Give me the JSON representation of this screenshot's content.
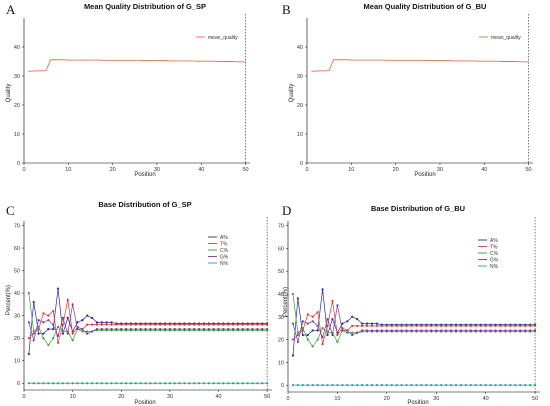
{
  "chart_data": [
    {
      "panel": "A",
      "type": "line",
      "title": "Mean Quality Distribution of G_SP",
      "xlabel": "Position",
      "ylabel": "Quality",
      "xlim": [
        0,
        51
      ],
      "ylim": [
        0,
        50
      ],
      "xticks": [
        0,
        10,
        20,
        30,
        40,
        50
      ],
      "yticks": [
        0,
        10,
        20,
        30,
        40
      ],
      "grid": false,
      "legend_position": "top-right",
      "vline_x": 50,
      "x": [
        1,
        2,
        3,
        4,
        5,
        6,
        7,
        8,
        9,
        10,
        11,
        12,
        13,
        14,
        15,
        16,
        17,
        18,
        19,
        20,
        21,
        22,
        23,
        24,
        25,
        26,
        27,
        28,
        29,
        30,
        31,
        32,
        33,
        34,
        35,
        36,
        37,
        38,
        39,
        40,
        41,
        42,
        43,
        44,
        45,
        46,
        47,
        48,
        49,
        50
      ],
      "series": [
        {
          "name": "mean_quality",
          "color": "#e8704a",
          "values": [
            31.6,
            31.7,
            31.8,
            31.8,
            31.9,
            35.6,
            35.6,
            35.6,
            35.6,
            35.5,
            35.5,
            35.5,
            35.5,
            35.5,
            35.5,
            35.5,
            35.5,
            35.4,
            35.4,
            35.4,
            35.4,
            35.4,
            35.4,
            35.4,
            35.4,
            35.4,
            35.3,
            35.3,
            35.3,
            35.3,
            35.3,
            35.3,
            35.2,
            35.2,
            35.2,
            35.2,
            35.2,
            35.2,
            35.1,
            35.1,
            35.1,
            35.1,
            35.1,
            35.0,
            35.0,
            35.0,
            35.0,
            34.9,
            34.9,
            34.8
          ]
        }
      ]
    },
    {
      "panel": "B",
      "type": "line",
      "title": "Mean Quality Distribution of G_BU",
      "xlabel": "Position",
      "ylabel": "Quality",
      "xlim": [
        0,
        51
      ],
      "ylim": [
        0,
        50
      ],
      "xticks": [
        0,
        10,
        20,
        30,
        40,
        50
      ],
      "yticks": [
        0,
        10,
        20,
        30,
        40
      ],
      "grid": false,
      "legend_position": "top-right",
      "vline_x": 50,
      "x": [
        1,
        2,
        3,
        4,
        5,
        6,
        7,
        8,
        9,
        10,
        11,
        12,
        13,
        14,
        15,
        16,
        17,
        18,
        19,
        20,
        21,
        22,
        23,
        24,
        25,
        26,
        27,
        28,
        29,
        30,
        31,
        32,
        33,
        34,
        35,
        36,
        37,
        38,
        39,
        40,
        41,
        42,
        43,
        44,
        45,
        46,
        47,
        48,
        49,
        50
      ],
      "series": [
        {
          "name": "mean_quality",
          "color": "#e8704a",
          "values": [
            31.6,
            31.7,
            31.8,
            31.8,
            31.9,
            35.6,
            35.6,
            35.6,
            35.6,
            35.5,
            35.5,
            35.5,
            35.5,
            35.5,
            35.5,
            35.5,
            35.5,
            35.4,
            35.4,
            35.4,
            35.4,
            35.4,
            35.4,
            35.4,
            35.4,
            35.4,
            35.3,
            35.3,
            35.3,
            35.3,
            35.3,
            35.3,
            35.2,
            35.2,
            35.2,
            35.2,
            35.2,
            35.2,
            35.1,
            35.1,
            35.1,
            35.1,
            35.1,
            35.0,
            35.0,
            35.0,
            35.0,
            34.9,
            34.9,
            34.8
          ]
        }
      ]
    },
    {
      "panel": "C",
      "type": "line",
      "title": "Base Distribution of G_SP",
      "xlabel": "Position",
      "ylabel": "Percent(%)",
      "xlim": [
        0,
        51
      ],
      "ylim": [
        -3,
        72
      ],
      "xticks": [
        0,
        10,
        20,
        30,
        40,
        50
      ],
      "yticks": [
        0,
        10,
        20,
        30,
        40,
        50,
        60,
        70
      ],
      "grid": false,
      "legend_position": "right",
      "markers": true,
      "vline_x": 50,
      "x": [
        1,
        2,
        3,
        4,
        5,
        6,
        7,
        8,
        9,
        10,
        11,
        12,
        13,
        14,
        15,
        16,
        17,
        18,
        19,
        20,
        21,
        22,
        23,
        24,
        25,
        26,
        27,
        28,
        29,
        30,
        31,
        32,
        33,
        34,
        35,
        36,
        37,
        38,
        39,
        40,
        41,
        42,
        43,
        44,
        45,
        46,
        47,
        48,
        49,
        50
      ],
      "series": [
        {
          "name": "A%",
          "color": "#2c2c8c",
          "values": [
            13,
            36,
            22,
            22,
            24,
            24,
            42,
            22,
            29,
            23,
            27,
            28,
            30,
            29,
            27,
            27,
            27,
            27,
            26.5,
            26.5,
            26.5,
            26.5,
            26.5,
            26.5,
            26.5,
            26.5,
            26.5,
            26.5,
            26.5,
            26.5,
            26.5,
            26.5,
            26.5,
            26.5,
            26.5,
            26.5,
            26.5,
            26.5,
            26.5,
            26.5,
            26.5,
            26.5,
            26.5,
            26.5,
            26.5,
            26.5,
            26.5,
            26.5,
            26.5,
            26.5
          ]
        },
        {
          "name": "T%",
          "color": "#d83a3a",
          "values": [
            20,
            22,
            24,
            31,
            30,
            32,
            18,
            26,
            37,
            22,
            25,
            24,
            26,
            26,
            26,
            26,
            26,
            26,
            26,
            26,
            26,
            26,
            26,
            26,
            26,
            26,
            26,
            26,
            26,
            26,
            26,
            26,
            26,
            26,
            26,
            26,
            26,
            26,
            26,
            26,
            26,
            26,
            26,
            26,
            26,
            26,
            26,
            26,
            26,
            26
          ]
        },
        {
          "name": "C%",
          "color": "#3a9a3a",
          "values": [
            40,
            23,
            25,
            20,
            17,
            20,
            25,
            23,
            23,
            19,
            24,
            23,
            23,
            23,
            23.5,
            23.5,
            23.5,
            23.5,
            23.5,
            23.5,
            23.5,
            23.5,
            23.5,
            23.5,
            23.5,
            23.5,
            23.5,
            23.5,
            23.5,
            23.5,
            23.5,
            23.5,
            23.5,
            23.5,
            23.5,
            23.5,
            23.5,
            23.5,
            23.5,
            23.5,
            23.5,
            23.5,
            23.5,
            23.5,
            23.5,
            23.5,
            23.5,
            23.5,
            23.5,
            23.5
          ]
        },
        {
          "name": "G%",
          "color": "#7a3a9a",
          "values": [
            27,
            19,
            28,
            27,
            28,
            26,
            21,
            29,
            22,
            35,
            24,
            24,
            22,
            23,
            24,
            24,
            24,
            24,
            24,
            24,
            24,
            24,
            24,
            24,
            24,
            24,
            24,
            24,
            24,
            24,
            24,
            24,
            24,
            24,
            24,
            24,
            24,
            24,
            24,
            24,
            24,
            24,
            24,
            24,
            24,
            24,
            24,
            24,
            24,
            24
          ]
        },
        {
          "name": "N%",
          "color": "#2aa198",
          "values": [
            0,
            0,
            0,
            0,
            0,
            0,
            0,
            0,
            0,
            0,
            0,
            0,
            0,
            0,
            0,
            0,
            0,
            0,
            0,
            0,
            0,
            0,
            0,
            0,
            0,
            0,
            0,
            0,
            0,
            0,
            0,
            0,
            0,
            0,
            0,
            0,
            0,
            0,
            0,
            0,
            0,
            0,
            0,
            0,
            0,
            0,
            0,
            0,
            0,
            0
          ]
        }
      ]
    },
    {
      "panel": "D",
      "type": "line",
      "title": "Base Distribution of G_BU",
      "xlabel": "Position",
      "ylabel": "Percent(%)",
      "xlim": [
        0,
        51
      ],
      "ylim": [
        -3,
        72
      ],
      "xticks": [
        0,
        10,
        20,
        30,
        40,
        50
      ],
      "yticks": [
        0,
        10,
        20,
        30,
        40,
        50,
        60,
        70
      ],
      "grid": false,
      "legend_position": "right",
      "markers": true,
      "vline_x": 50,
      "x": [
        1,
        2,
        3,
        4,
        5,
        6,
        7,
        8,
        9,
        10,
        11,
        12,
        13,
        14,
        15,
        16,
        17,
        18,
        19,
        20,
        21,
        22,
        23,
        24,
        25,
        26,
        27,
        28,
        29,
        30,
        31,
        32,
        33,
        34,
        35,
        36,
        37,
        38,
        39,
        40,
        41,
        42,
        43,
        44,
        45,
        46,
        47,
        48,
        49,
        50
      ],
      "series": [
        {
          "name": "A%",
          "color": "#2c2c8c",
          "values": [
            13,
            38,
            22,
            22,
            24,
            24,
            42,
            22,
            29,
            23,
            27,
            28,
            30,
            29,
            27,
            27,
            27,
            27,
            26.5,
            26.5,
            26.5,
            26.5,
            26.5,
            26.5,
            26.5,
            26.5,
            26.5,
            26.5,
            26.5,
            26.5,
            26.5,
            26.5,
            26.5,
            26.5,
            26.5,
            26.5,
            26.5,
            26.5,
            26.5,
            26.5,
            26.5,
            26.5,
            26.5,
            26.5,
            26.5,
            26.5,
            26.5,
            26.5,
            26.5,
            26.5
          ]
        },
        {
          "name": "T%",
          "color": "#d83a3a",
          "values": [
            20,
            22,
            24,
            31,
            30,
            32,
            18,
            26,
            37,
            22,
            25,
            24,
            26,
            26,
            26,
            26,
            26,
            26,
            26,
            26,
            26,
            26,
            26,
            26,
            26,
            26,
            26,
            26,
            26,
            26,
            26,
            26,
            26,
            26,
            26,
            26,
            26,
            26,
            26,
            26,
            26,
            26,
            26,
            26,
            26,
            26,
            26,
            26,
            26,
            26
          ]
        },
        {
          "name": "C%",
          "color": "#3a9a3a",
          "values": [
            40,
            23,
            25,
            20,
            17,
            20,
            25,
            23,
            23,
            19,
            24,
            23,
            23,
            23,
            23.5,
            23.5,
            23.5,
            23.5,
            23.5,
            23.5,
            23.5,
            23.5,
            23.5,
            23.5,
            23.5,
            23.5,
            23.5,
            23.5,
            23.5,
            23.5,
            23.5,
            23.5,
            23.5,
            23.5,
            23.5,
            23.5,
            23.5,
            23.5,
            23.5,
            23.5,
            23.5,
            23.5,
            23.5,
            23.5,
            23.5,
            23.5,
            23.5,
            23.5,
            23.5,
            23.5
          ]
        },
        {
          "name": "G%",
          "color": "#7a3a9a",
          "values": [
            27,
            19,
            28,
            27,
            28,
            26,
            21,
            29,
            22,
            35,
            24,
            24,
            22,
            23,
            24,
            24,
            24,
            24,
            24,
            24,
            24,
            24,
            24,
            24,
            24,
            24,
            24,
            24,
            24,
            24,
            24,
            24,
            24,
            24,
            24,
            24,
            24,
            24,
            24,
            24,
            24,
            24,
            24,
            24,
            24,
            24,
            24,
            24,
            24,
            24
          ]
        },
        {
          "name": "N%",
          "color": "#2aa198",
          "values": [
            0,
            0,
            0,
            0,
            0,
            0,
            0,
            0,
            0,
            0,
            0,
            0,
            0,
            0,
            0,
            0,
            0,
            0,
            0,
            0,
            0,
            0,
            0,
            0,
            0,
            0,
            0,
            0,
            0,
            0,
            0,
            0,
            0,
            0,
            0,
            0,
            0,
            0,
            0,
            0,
            0,
            0,
            0,
            0,
            0,
            0,
            0,
            0,
            0,
            0
          ]
        }
      ]
    }
  ]
}
